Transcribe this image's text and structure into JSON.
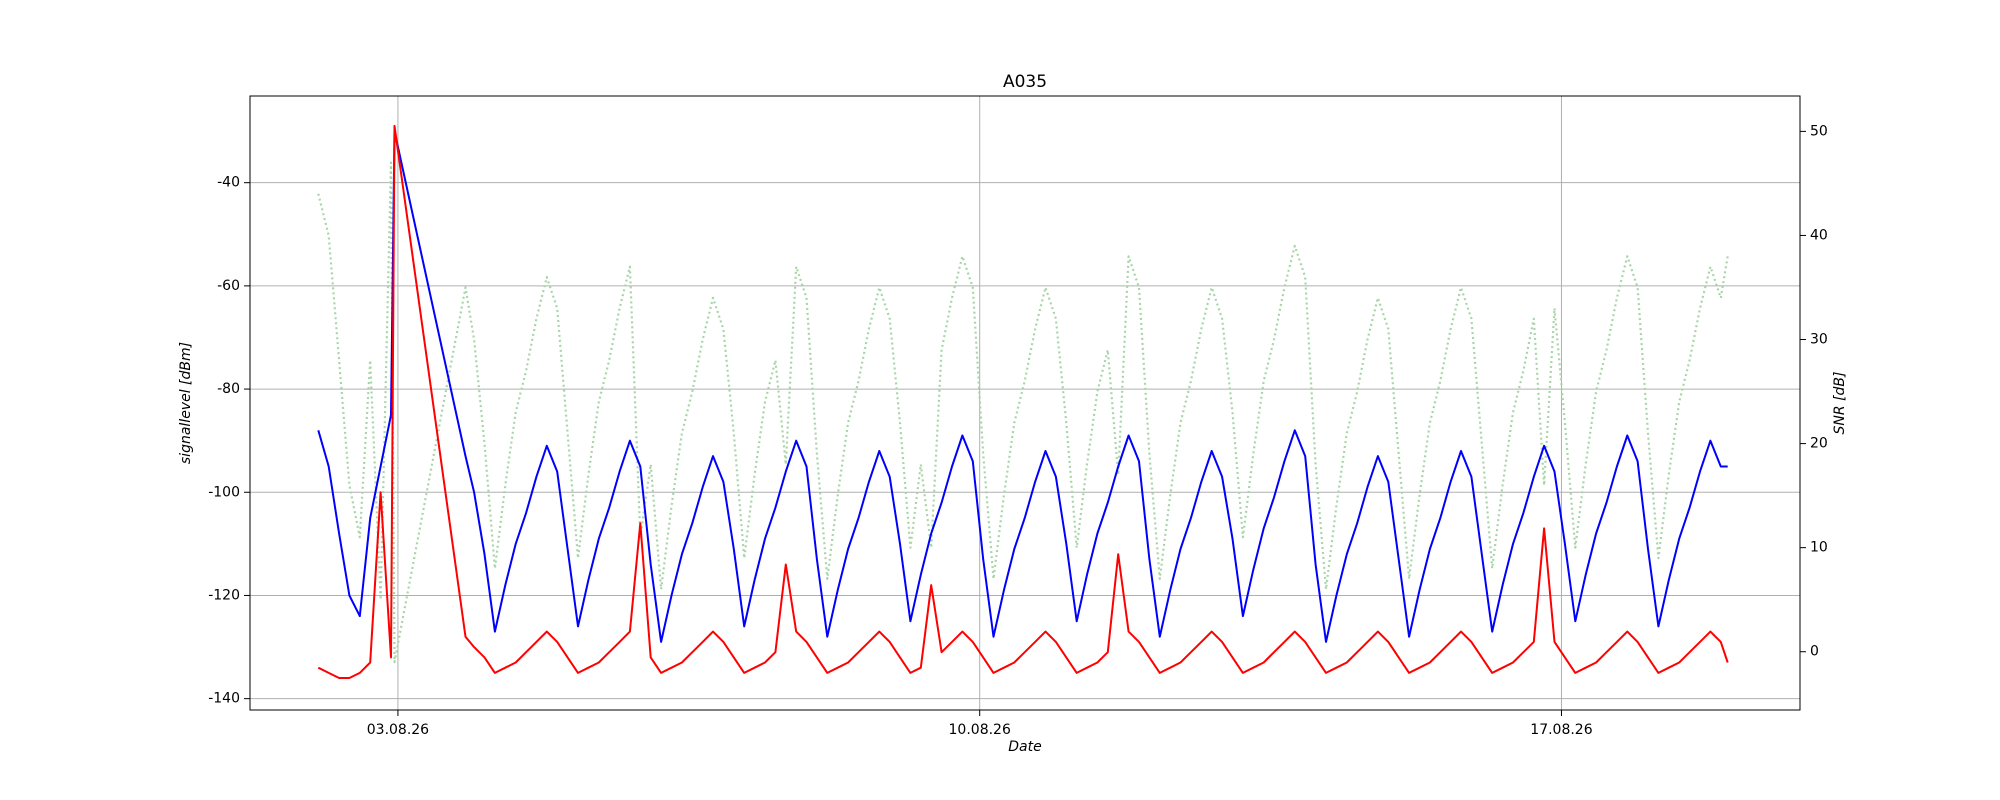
{
  "chart_data": {
    "type": "line",
    "title": "A035",
    "xlabel": "Date",
    "ylabel": "signallevel [dBm]",
    "y2label": "SNR [dB]",
    "grid": true,
    "xlim": [
      "2026-08-01 05:17",
      "2026-08-19 20:53"
    ],
    "xticks": [
      {
        "value": "2026-08-03 00:00",
        "label": "03.08.26"
      },
      {
        "value": "2026-08-10 00:00",
        "label": "10.08.26"
      },
      {
        "value": "2026-08-17 00:00",
        "label": "17.08.26"
      }
    ],
    "ylim": [
      -142.2,
      -23.2
    ],
    "yticks": [
      -140,
      -120,
      -100,
      -80,
      -60,
      -40
    ],
    "y2lim": [
      -5.6,
      53.4
    ],
    "y2ticks": [
      0,
      10,
      20,
      30,
      40,
      50
    ],
    "x": [
      "2026-08-02 01:00",
      "2026-08-02 04:00",
      "2026-08-02 07:00",
      "2026-08-02 10:00",
      "2026-08-02 13:00",
      "2026-08-02 16:00",
      "2026-08-02 19:00",
      "2026-08-02 22:00",
      "2026-08-02 23:00",
      "2026-08-03 19:30",
      "2026-08-03 22:00",
      "2026-08-04 01:00",
      "2026-08-04 04:00",
      "2026-08-04 07:00",
      "2026-08-04 10:00",
      "2026-08-04 13:00",
      "2026-08-04 16:00",
      "2026-08-04 19:00",
      "2026-08-04 22:00",
      "2026-08-05 01:00",
      "2026-08-05 04:00",
      "2026-08-05 07:00",
      "2026-08-05 10:00",
      "2026-08-05 13:00",
      "2026-08-05 16:00",
      "2026-08-05 19:00",
      "2026-08-05 22:00",
      "2026-08-06 01:00",
      "2026-08-06 04:00",
      "2026-08-06 07:00",
      "2026-08-06 10:00",
      "2026-08-06 13:00",
      "2026-08-06 16:00",
      "2026-08-06 19:00",
      "2026-08-06 22:00",
      "2026-08-07 01:00",
      "2026-08-07 04:00",
      "2026-08-07 07:00",
      "2026-08-07 10:00",
      "2026-08-07 13:00",
      "2026-08-07 16:00",
      "2026-08-07 19:00",
      "2026-08-07 22:00",
      "2026-08-08 01:00",
      "2026-08-08 04:00",
      "2026-08-08 07:00",
      "2026-08-08 10:00",
      "2026-08-08 13:00",
      "2026-08-08 16:00",
      "2026-08-08 19:00",
      "2026-08-08 22:00",
      "2026-08-09 01:00",
      "2026-08-09 04:00",
      "2026-08-09 07:00",
      "2026-08-09 10:00",
      "2026-08-09 13:00",
      "2026-08-09 16:00",
      "2026-08-09 19:00",
      "2026-08-09 22:00",
      "2026-08-10 01:00",
      "2026-08-10 04:00",
      "2026-08-10 07:00",
      "2026-08-10 10:00",
      "2026-08-10 13:00",
      "2026-08-10 16:00",
      "2026-08-10 19:00",
      "2026-08-10 22:00",
      "2026-08-11 01:00",
      "2026-08-11 04:00",
      "2026-08-11 07:00",
      "2026-08-11 10:00",
      "2026-08-11 13:00",
      "2026-08-11 16:00",
      "2026-08-11 19:00",
      "2026-08-11 22:00",
      "2026-08-12 01:00",
      "2026-08-12 04:00",
      "2026-08-12 07:00",
      "2026-08-12 10:00",
      "2026-08-12 13:00",
      "2026-08-12 16:00",
      "2026-08-12 19:00",
      "2026-08-12 22:00",
      "2026-08-13 01:00",
      "2026-08-13 04:00",
      "2026-08-13 07:00",
      "2026-08-13 10:00",
      "2026-08-13 13:00",
      "2026-08-13 16:00",
      "2026-08-13 19:00",
      "2026-08-13 22:00",
      "2026-08-14 01:00",
      "2026-08-14 04:00",
      "2026-08-14 07:00",
      "2026-08-14 10:00",
      "2026-08-14 13:00",
      "2026-08-14 16:00",
      "2026-08-14 19:00",
      "2026-08-14 22:00",
      "2026-08-15 01:00",
      "2026-08-15 04:00",
      "2026-08-15 07:00",
      "2026-08-15 10:00",
      "2026-08-15 13:00",
      "2026-08-15 16:00",
      "2026-08-15 19:00",
      "2026-08-15 22:00",
      "2026-08-16 01:00",
      "2026-08-16 04:00",
      "2026-08-16 07:00",
      "2026-08-16 10:00",
      "2026-08-16 13:00",
      "2026-08-16 16:00",
      "2026-08-16 19:00",
      "2026-08-16 22:00",
      "2026-08-17 01:00",
      "2026-08-17 04:00",
      "2026-08-17 07:00",
      "2026-08-17 10:00",
      "2026-08-17 13:00",
      "2026-08-17 16:00",
      "2026-08-17 19:00",
      "2026-08-17 22:00",
      "2026-08-18 01:00",
      "2026-08-18 04:00",
      "2026-08-18 07:00",
      "2026-08-18 10:00",
      "2026-08-18 13:00",
      "2026-08-18 16:00",
      "2026-08-18 19:00",
      "2026-08-18 22:00",
      "2026-08-19 00:00"
    ],
    "series": [
      {
        "color": "#a8d5a8",
        "axis": "y2",
        "style": "dotted",
        "values": [
          44,
          40,
          28,
          16,
          11,
          28,
          5,
          47,
          -1,
          35,
          30,
          20,
          8,
          16,
          23,
          27,
          32,
          36,
          33,
          21,
          9,
          17,
          24,
          28,
          33,
          37,
          11,
          18,
          6,
          14,
          21,
          25,
          30,
          34,
          31,
          21,
          9,
          17,
          24,
          28,
          18,
          37,
          34,
          19,
          7,
          15,
          22,
          26,
          31,
          35,
          32,
          22,
          10,
          18,
          10,
          29,
          34,
          38,
          35,
          19,
          7,
          15,
          22,
          26,
          31,
          35,
          32,
          22,
          10,
          18,
          25,
          29,
          17,
          38,
          35,
          19,
          7,
          15,
          22,
          26,
          31,
          35,
          32,
          23,
          11,
          19,
          26,
          30,
          35,
          39,
          36,
          18,
          6,
          14,
          21,
          25,
          30,
          34,
          31,
          19,
          7,
          15,
          22,
          26,
          31,
          35,
          32,
          20,
          8,
          16,
          23,
          27,
          32,
          16,
          33,
          22,
          10,
          18,
          25,
          29,
          34,
          38,
          35,
          21,
          9,
          17,
          24,
          28,
          33,
          37,
          34,
          38
        ]
      },
      {
        "color": "#0000ff",
        "style": "solid",
        "values": [
          -88,
          -95,
          -108,
          -120,
          -124,
          -105,
          -95,
          -85,
          -30,
          -93,
          -100,
          -112,
          -127,
          -118,
          -110,
          -104,
          -97,
          -91,
          -96,
          -111,
          -126,
          -117,
          -109,
          -103,
          -96,
          -90,
          -95,
          -114,
          -129,
          -120,
          -112,
          -106,
          -99,
          -93,
          -98,
          -111,
          -126,
          -117,
          -109,
          -103,
          -96,
          -90,
          -95,
          -113,
          -128,
          -119,
          -111,
          -105,
          -98,
          -92,
          -97,
          -110,
          -125,
          -116,
          -108,
          -102,
          -95,
          -89,
          -94,
          -113,
          -128,
          -119,
          -111,
          -105,
          -98,
          -92,
          -97,
          -110,
          -125,
          -116,
          -108,
          -102,
          -95,
          -89,
          -94,
          -113,
          -128,
          -119,
          -111,
          -105,
          -98,
          -92,
          -97,
          -109,
          -124,
          -115,
          -107,
          -101,
          -94,
          -88,
          -93,
          -114,
          -129,
          -120,
          -112,
          -106,
          -99,
          -93,
          -98,
          -113,
          -128,
          -119,
          -111,
          -105,
          -98,
          -92,
          -97,
          -112,
          -127,
          -118,
          -110,
          -104,
          -97,
          -91,
          -96,
          -110,
          -125,
          -116,
          -108,
          -102,
          -95,
          -89,
          -94,
          -111,
          -126,
          -117,
          -109,
          -103,
          -96,
          -90,
          -95,
          -95
        ]
      },
      {
        "color": "#ff0000",
        "style": "solid",
        "values": [
          -134,
          -135,
          -136,
          -136,
          -135,
          -133,
          -100,
          -132,
          -29,
          -128,
          -130,
          -132,
          -135,
          -134,
          -133,
          -131,
          -129,
          -127,
          -129,
          -132,
          -135,
          -134,
          -133,
          -131,
          -129,
          -127,
          -106,
          -132,
          -135,
          -134,
          -133,
          -131,
          -129,
          -127,
          -129,
          -132,
          -135,
          -134,
          -133,
          -131,
          -114,
          -127,
          -129,
          -132,
          -135,
          -134,
          -133,
          -131,
          -129,
          -127,
          -129,
          -132,
          -135,
          -134,
          -118,
          -131,
          -129,
          -127,
          -129,
          -132,
          -135,
          -134,
          -133,
          -131,
          -129,
          -127,
          -129,
          -132,
          -135,
          -134,
          -133,
          -131,
          -112,
          -127,
          -129,
          -132,
          -135,
          -134,
          -133,
          -131,
          -129,
          -127,
          -129,
          -132,
          -135,
          -134,
          -133,
          -131,
          -129,
          -127,
          -129,
          -132,
          -135,
          -134,
          -133,
          -131,
          -129,
          -127,
          -129,
          -132,
          -135,
          -134,
          -133,
          -131,
          -129,
          -127,
          -129,
          -132,
          -135,
          -134,
          -133,
          -131,
          -129,
          -107,
          -129,
          -132,
          -135,
          -134,
          -133,
          -131,
          -129,
          -127,
          -129,
          -132,
          -135,
          -134,
          -133,
          -131,
          -129,
          -127,
          -129,
          -133
        ]
      }
    ]
  }
}
